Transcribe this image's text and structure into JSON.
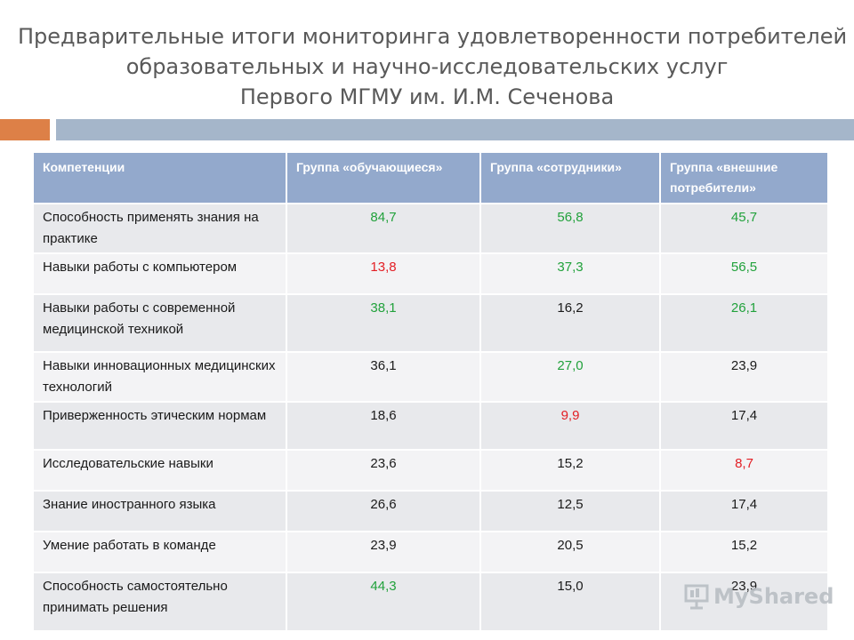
{
  "title": {
    "line1": "Предварительные итоги мониторинга удовлетворенности потребителей",
    "line2": "образовательных и научно-исследовательских услуг",
    "line3": "Первого МГМУ им. И.М. Сеченова"
  },
  "accent_colors": {
    "orange_bar": "#dd8047",
    "blue_bar": "#a5b6ca",
    "header_bg": "#93a9cc",
    "green_value": "#21a13b",
    "red_value": "#e31e24"
  },
  "table": {
    "headers": [
      "Компетенции",
      "Группа «обучающиеся»",
      "Группа «сотрудники»",
      "Группа «внешние потребители»"
    ],
    "rows": [
      {
        "label": "Способность применять знания на практике",
        "values": [
          "84,7",
          "56,8",
          "45,7"
        ],
        "colors": [
          "green",
          "green",
          "green"
        ]
      },
      {
        "label": "Навыки работы с компьютером",
        "values": [
          "13,8",
          "37,3",
          "56,5"
        ],
        "colors": [
          "red",
          "green",
          "green"
        ]
      },
      {
        "label": "Навыки работы с современной медицинской техникой",
        "values": [
          "38,1",
          "16,2",
          "26,1"
        ],
        "colors": [
          "green",
          "black",
          "green"
        ]
      },
      {
        "label": "Навыки инновационных медицинских технологий",
        "values": [
          "36,1",
          "27,0",
          "23,9"
        ],
        "colors": [
          "black",
          "green",
          "black"
        ]
      },
      {
        "label": "Приверженность этическим нормам",
        "values": [
          "18,6",
          "9,9",
          "17,4"
        ],
        "colors": [
          "black",
          "red",
          "black"
        ]
      },
      {
        "label": "Исследовательские навыки",
        "values": [
          "23,6",
          "15,2",
          "8,7"
        ],
        "colors": [
          "black",
          "black",
          "red"
        ]
      },
      {
        "label": "Знание иностранного языка",
        "values": [
          "26,6",
          "12,5",
          "17,4"
        ],
        "colors": [
          "black",
          "black",
          "black"
        ]
      },
      {
        "label": "Умение работать в команде",
        "values": [
          "23,9",
          "20,5",
          "15,2"
        ],
        "colors": [
          "black",
          "black",
          "black"
        ]
      },
      {
        "label": "Способность самостоятельно принимать решения",
        "values": [
          "44,3",
          "15,0",
          "23,9"
        ],
        "colors": [
          "green",
          "black",
          "black"
        ]
      }
    ]
  },
  "watermark": {
    "text": "MyShared",
    "icon": "presentation-board-icon"
  }
}
